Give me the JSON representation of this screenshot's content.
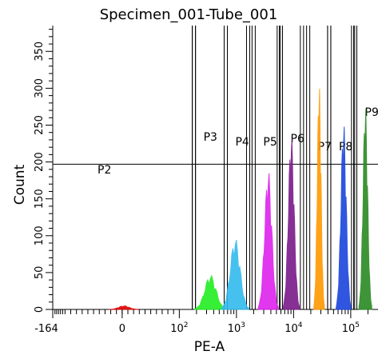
{
  "chart_data": {
    "type": "histogram",
    "title": "Specimen_001-Tube_001",
    "xlabel": "PE-A",
    "ylabel": "Count",
    "x_scale": "biexponential (log above ~10^2)",
    "x_tick_labels": [
      "-164",
      "0",
      "10^2",
      "10^3",
      "10^4",
      "10^5"
    ],
    "x_ticks": [
      -164,
      0,
      100,
      1000,
      10000,
      100000
    ],
    "y_ticks": [
      0,
      50,
      100,
      150,
      200,
      250,
      300,
      350
    ],
    "ylim": [
      0,
      385
    ],
    "threshold_y": 197,
    "colors": {
      "P2": "#e00000",
      "P3": "#22ee22",
      "P4": "#33bbee",
      "P5": "#dd22ee",
      "P6": "#7a1a8a",
      "P7": "#ff9900",
      "P8": "#1a44dd",
      "P9": "#2a8a22"
    },
    "series": [
      {
        "name": "P2",
        "peak_x": 3,
        "peak_count": 5
      },
      {
        "name": "P3",
        "peak_x": 350,
        "peak_count": 47
      },
      {
        "name": "P4",
        "peak_x": 950,
        "peak_count": 97
      },
      {
        "name": "P5",
        "peak_x": 3600,
        "peak_count": 190
      },
      {
        "name": "P6",
        "peak_x": 9100,
        "peak_count": 238
      },
      {
        "name": "P7",
        "peak_x": 28000,
        "peak_count": 308
      },
      {
        "name": "P8",
        "peak_x": 75000,
        "peak_count": 255
      },
      {
        "name": "P9",
        "peak_x": 180000,
        "peak_count": 280
      }
    ],
    "gates": [
      {
        "label": "P2",
        "x_from": -164,
        "x_to": 180
      },
      {
        "label": "P3",
        "x_from": 180,
        "x_to": 650
      },
      {
        "label": "P4",
        "x_from": 650,
        "x_to": 1600
      },
      {
        "label": "P5",
        "x_from": 2000,
        "x_to": 5500
      },
      {
        "label": "P6",
        "x_from": 6000,
        "x_to": 14000
      },
      {
        "label": "P7",
        "x_from": 18000,
        "x_to": 42000
      },
      {
        "label": "P8",
        "x_from": 42000,
        "x_to": 110000
      },
      {
        "label": "P9",
        "x_from": 120000,
        "x_to": 300000
      }
    ]
  }
}
